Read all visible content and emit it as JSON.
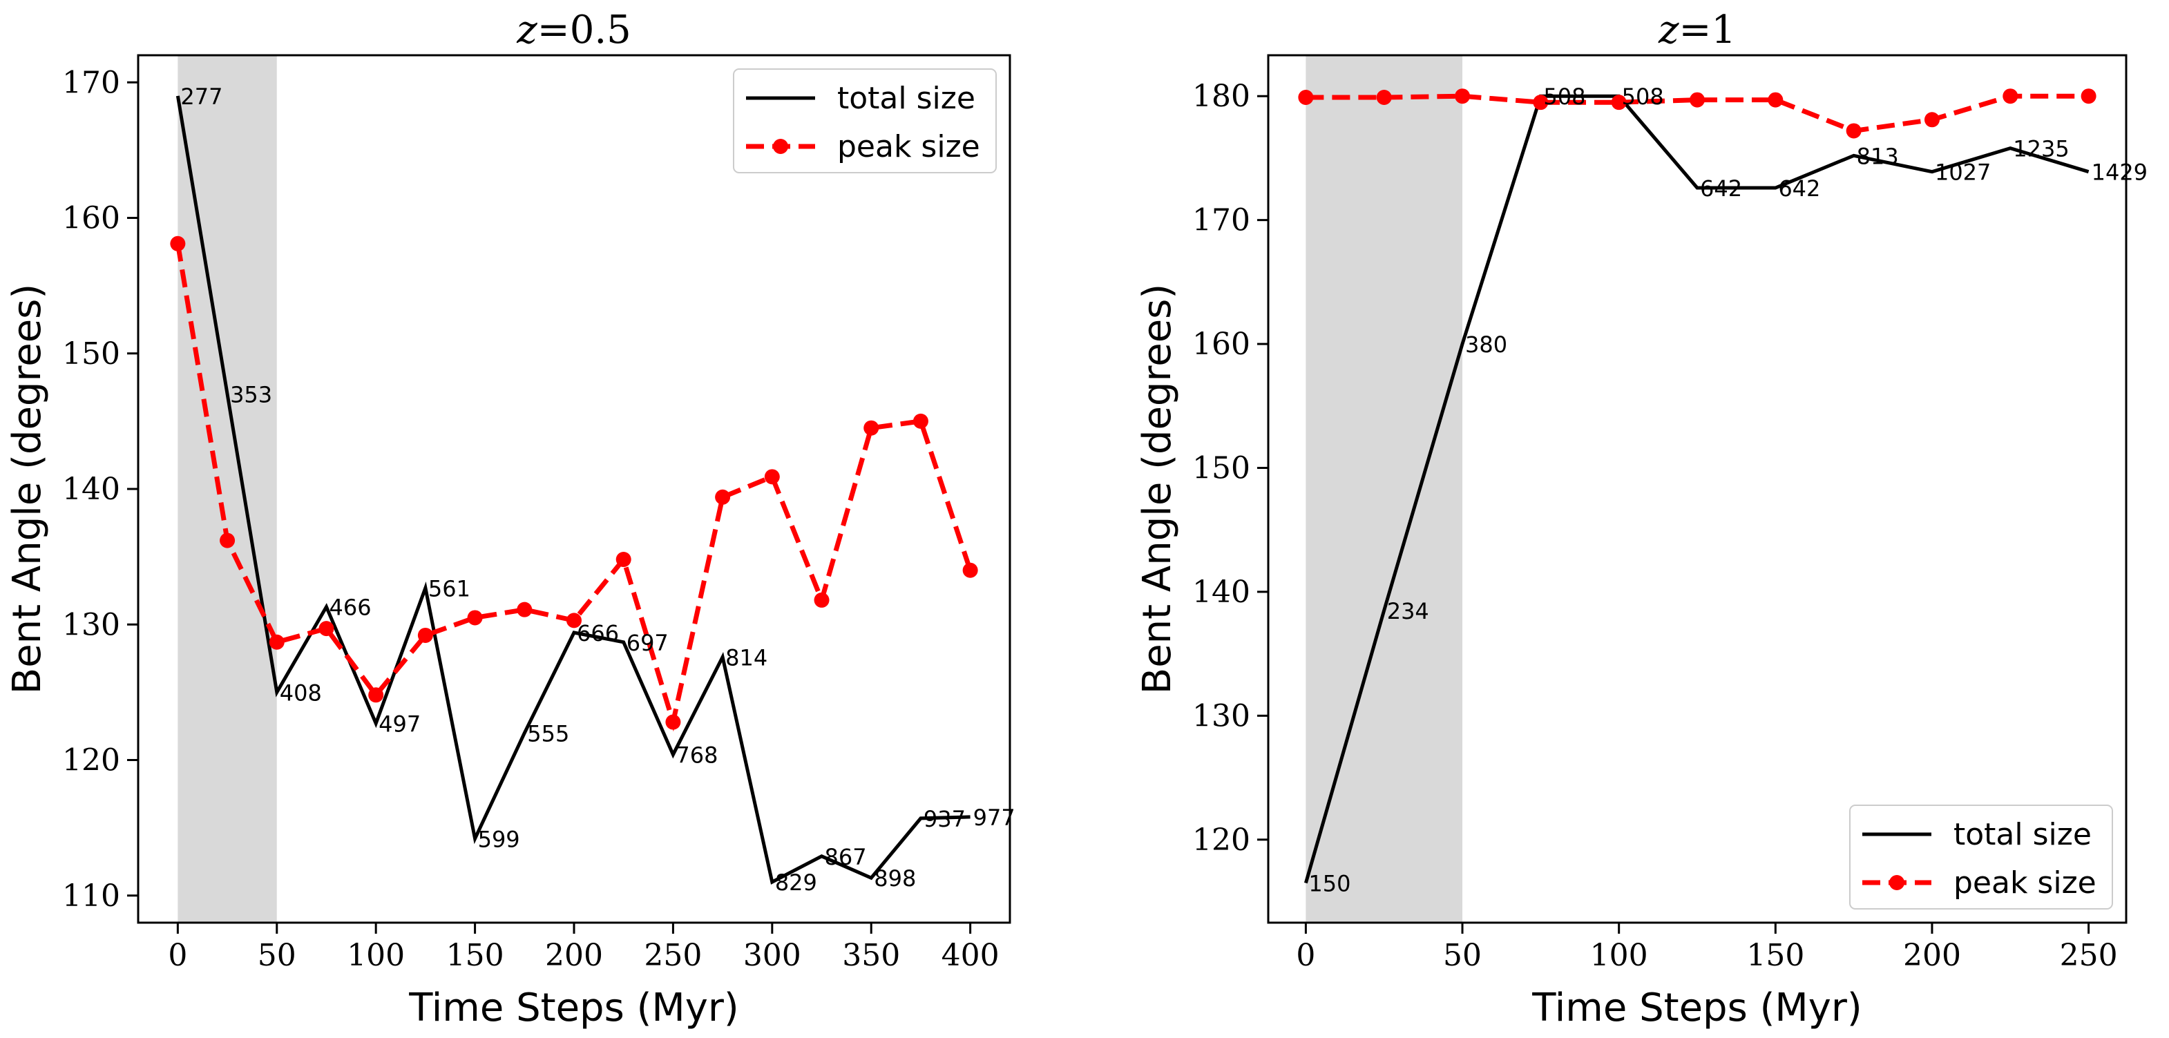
{
  "chart_data": [
    {
      "type": "line",
      "title": "z=0.5",
      "title_var": "z",
      "title_value": "=0.5",
      "xlabel": "Time Steps (Myr)",
      "ylabel": "Bent Angle (degrees)",
      "xlim": [
        -20,
        420
      ],
      "ylim": [
        108,
        172
      ],
      "xticks": [
        0,
        50,
        100,
        150,
        200,
        250,
        300,
        350,
        400
      ],
      "yticks": [
        110,
        120,
        130,
        140,
        150,
        160,
        170
      ],
      "shaded_region": [
        0,
        50
      ],
      "grid": false,
      "legend_position": "top-right",
      "series": [
        {
          "name": "total size",
          "color": "#000000",
          "style": "solid",
          "x": [
            0,
            25,
            50,
            75,
            100,
            125,
            150,
            175,
            200,
            225,
            250,
            275,
            300,
            325,
            350,
            375,
            400
          ],
          "y": [
            169,
            147,
            125,
            131.3,
            122.7,
            132.7,
            114.2,
            122,
            129.4,
            128.7,
            120.4,
            127.6,
            111,
            112.9,
            111.3,
            115.7,
            115.8
          ],
          "point_labels": [
            "277",
            "353",
            "408",
            "466",
            "497",
            "561",
            "599",
            "555",
            "666",
            "697",
            "768",
            "814",
            "829",
            "867",
            "898",
            "937",
            "977"
          ]
        },
        {
          "name": "peak size",
          "color": "#ff0000",
          "style": "dashed",
          "marker": "circle",
          "x": [
            0,
            25,
            50,
            75,
            100,
            125,
            150,
            175,
            200,
            225,
            250,
            275,
            300,
            325,
            350,
            375,
            400
          ],
          "y": [
            158.1,
            136.2,
            128.7,
            129.7,
            124.8,
            129.2,
            130.5,
            131.1,
            130.3,
            134.8,
            122.8,
            139.4,
            140.9,
            131.8,
            144.5,
            145,
            134
          ]
        }
      ]
    },
    {
      "type": "line",
      "title": "z=1",
      "title_var": "z",
      "title_value": "=1",
      "xlabel": "Time Steps (Myr)",
      "ylabel": "Bent Angle (degrees)",
      "xlim": [
        -12,
        262
      ],
      "ylim": [
        113.3,
        183.3
      ],
      "xticks": [
        0,
        50,
        100,
        150,
        200,
        250
      ],
      "yticks": [
        120,
        130,
        140,
        150,
        160,
        170,
        180
      ],
      "shaded_region": [
        0,
        50
      ],
      "grid": false,
      "legend_position": "bottom-right",
      "series": [
        {
          "name": "total size",
          "color": "#000000",
          "style": "solid",
          "x": [
            0,
            25,
            50,
            75,
            100,
            125,
            150,
            175,
            200,
            225,
            250
          ],
          "y": [
            116.5,
            138.5,
            160,
            180,
            180,
            172.6,
            172.6,
            175.2,
            173.9,
            175.8,
            173.9
          ],
          "point_labels": [
            "150",
            "234",
            "380",
            "508",
            "508",
            "642",
            "642",
            "813",
            "1027",
            "1235",
            "1429"
          ]
        },
        {
          "name": "peak size",
          "color": "#ff0000",
          "style": "dashed",
          "marker": "circle",
          "x": [
            0,
            25,
            50,
            75,
            100,
            125,
            150,
            175,
            200,
            225,
            250
          ],
          "y": [
            179.9,
            179.9,
            180,
            179.5,
            179.5,
            179.7,
            179.7,
            177.2,
            178.1,
            180,
            180
          ]
        }
      ]
    }
  ]
}
